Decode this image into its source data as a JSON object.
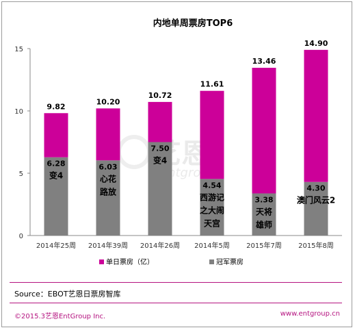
{
  "chart_data": {
    "type": "bar",
    "stacked": true,
    "title": "内地单周票房TOP6",
    "categories": [
      "2014年25周",
      "2014年39周",
      "2014年26周",
      "2014年5周",
      "2015年7周",
      "2015年8周"
    ],
    "series": [
      {
        "name": "冠军票房",
        "color": "#808080",
        "values": [
          6.28,
          6.03,
          7.5,
          4.54,
          3.38,
          4.3
        ]
      },
      {
        "name": "单日票房（亿）",
        "color": "#cc0099",
        "values": [
          3.54,
          4.17,
          3.22,
          7.07,
          10.08,
          10.6
        ]
      }
    ],
    "totals": [
      9.82,
      10.2,
      10.72,
      11.61,
      13.46,
      14.9
    ],
    "total_labels": [
      "9.82",
      "10.20",
      "10.72",
      "11.61",
      "13.46",
      "14.90"
    ],
    "champion_labels": [
      "6.28",
      "6.03",
      "7.50",
      "4.54",
      "3.38",
      "4.30"
    ],
    "film_lines": [
      [
        "变4"
      ],
      [
        "心花",
        "路放"
      ],
      [
        "变4"
      ],
      [
        "西游记",
        "之大闹",
        "天宫"
      ],
      [
        "天将",
        "雄师"
      ],
      [
        "澳门风云2"
      ]
    ],
    "yticks": [
      "0",
      "5",
      "10",
      "15"
    ],
    "ylim": [
      0,
      15
    ],
    "grid": false,
    "legend": "bottom",
    "watermark": "艺恩 entgroup"
  },
  "footer": {
    "source": "Source：EBOT艺恩日票房智库",
    "copyright": "©2015.3艺恩EntGroup Inc.",
    "website": "www.entgroup.cn"
  }
}
